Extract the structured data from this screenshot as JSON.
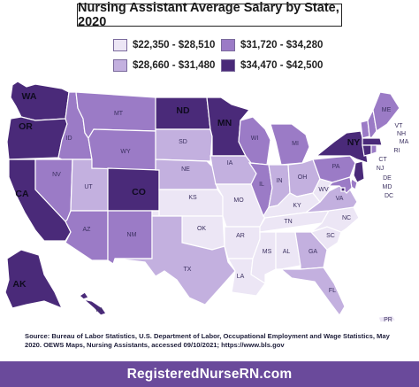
{
  "title": "Nursing Assistant Average Salary by State, 2020",
  "legend": [
    {
      "label": "$22,350 - $28,510",
      "color": "#ece6f5"
    },
    {
      "label": "$31,720 - $34,280",
      "color": "#9b7bc6"
    },
    {
      "label": "$28,660 - $31,480",
      "color": "#c3b0df"
    },
    {
      "label": "$34,470 - $42,500",
      "color": "#4a2a79"
    }
  ],
  "states": {
    "WA": {
      "label": "WA",
      "tier": 4
    },
    "OR": {
      "label": "OR",
      "tier": 4
    },
    "CA": {
      "label": "CA",
      "tier": 4
    },
    "ID": {
      "label": "ID",
      "tier": 3
    },
    "NV": {
      "label": "NV",
      "tier": 3
    },
    "UT": {
      "label": "UT",
      "tier": 2
    },
    "AZ": {
      "label": "AZ",
      "tier": 3
    },
    "MT": {
      "label": "MT",
      "tier": 3
    },
    "WY": {
      "label": "WY",
      "tier": 3
    },
    "CO": {
      "label": "CO",
      "tier": 4
    },
    "NM": {
      "label": "NM",
      "tier": 3
    },
    "ND": {
      "label": "ND",
      "tier": 4
    },
    "SD": {
      "label": "SD",
      "tier": 2
    },
    "NE": {
      "label": "NE",
      "tier": 2
    },
    "KS": {
      "label": "KS",
      "tier": 1
    },
    "OK": {
      "label": "OK",
      "tier": 1
    },
    "TX": {
      "label": "TX",
      "tier": 2
    },
    "MN": {
      "label": "MN",
      "tier": 4
    },
    "IA": {
      "label": "IA",
      "tier": 2
    },
    "MO": {
      "label": "MO",
      "tier": 1
    },
    "AR": {
      "label": "AR",
      "tier": 1
    },
    "LA": {
      "label": "LA",
      "tier": 1
    },
    "WI": {
      "label": "WI",
      "tier": 3
    },
    "IL": {
      "label": "IL",
      "tier": 3
    },
    "MI": {
      "label": "MI",
      "tier": 3
    },
    "IN": {
      "label": "IN",
      "tier": 2
    },
    "OH": {
      "label": "OH",
      "tier": 2
    },
    "KY": {
      "label": "KY",
      "tier": 1
    },
    "TN": {
      "label": "TN",
      "tier": 1
    },
    "MS": {
      "label": "MS",
      "tier": 1
    },
    "AL": {
      "label": "AL",
      "tier": 1
    },
    "GA": {
      "label": "GA",
      "tier": 2
    },
    "FL": {
      "label": "FL",
      "tier": 2
    },
    "SC": {
      "label": "SC",
      "tier": 1
    },
    "NC": {
      "label": "NC",
      "tier": 1
    },
    "VA": {
      "label": "VA",
      "tier": 2
    },
    "WV": {
      "label": "WV",
      "tier": 1
    },
    "PA": {
      "label": "PA",
      "tier": 3
    },
    "NY": {
      "label": "NY",
      "tier": 4
    },
    "ME": {
      "label": "ME",
      "tier": 3
    },
    "VT": {
      "label": "VT",
      "tier": 3
    },
    "NH": {
      "label": "NH",
      "tier": 3
    },
    "MA": {
      "label": "MA",
      "tier": 4
    },
    "RI": {
      "label": "RI",
      "tier": 3
    },
    "CT": {
      "label": "CT",
      "tier": 4
    },
    "NJ": {
      "label": "NJ",
      "tier": 4
    },
    "DE": {
      "label": "DE",
      "tier": 3
    },
    "MD": {
      "label": "MD",
      "tier": 3
    },
    "DC": {
      "label": "DC",
      "tier": 4
    },
    "AK": {
      "label": "AK",
      "tier": 4
    },
    "HI": {
      "label": "HI",
      "tier": 4
    },
    "PR": {
      "label": "PR",
      "tier": 1
    }
  },
  "source": "Source: Bureau of Labor Statistics, U.S. Department of Labor, Occupational Employment and Wage Statistics, May 2020. OEWS Maps, Nursing Assistants, accessed 09/10/2021; https://www.bls.gov",
  "footer": "RegisteredNurseRN.com"
}
